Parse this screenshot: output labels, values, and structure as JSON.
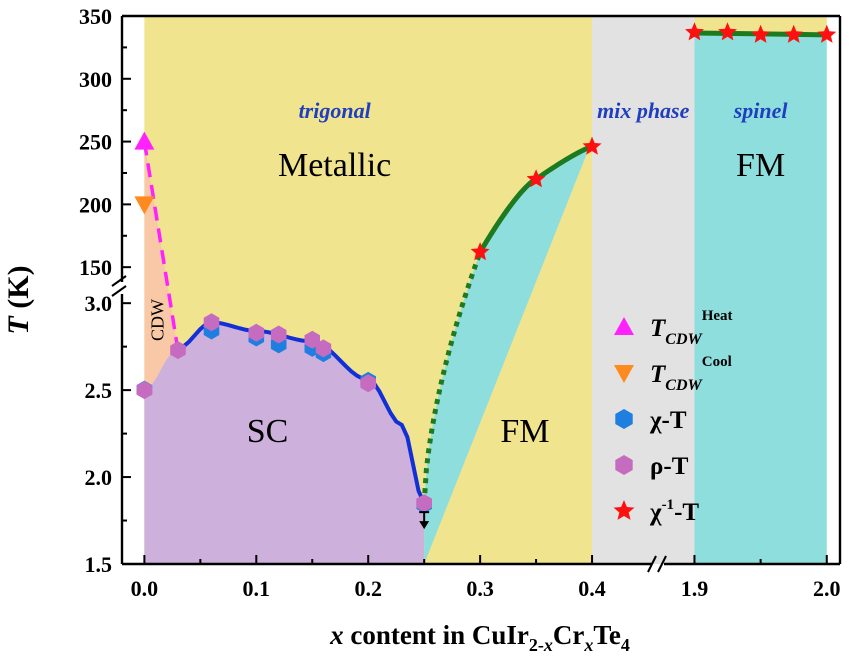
{
  "chart_data": {
    "type": "scatter",
    "title": "",
    "xlabel": {
      "var": "x",
      "text": " content in CuIr",
      "sub1": "2-",
      "sub1_var": "x",
      "mid": "Cr",
      "sub2_var": "x",
      "end": "Te",
      "sub3": "4"
    },
    "ylabel": {
      "var": "T",
      "unit": " (K)"
    },
    "x_ticks_low": [
      "0.0",
      "0.1",
      "0.2",
      "0.3",
      "0.4"
    ],
    "x_ticks_high": [
      "1.9",
      "2.0"
    ],
    "y_ticks_low": [
      "1.5",
      "2.0",
      "2.5",
      "3.0"
    ],
    "y_ticks_high": [
      "150",
      "200",
      "250",
      "300",
      "350"
    ],
    "x_ranges": [
      [
        -0.02,
        0.45
      ],
      [
        1.88,
        2.01
      ]
    ],
    "y_ranges": [
      [
        1.5,
        3.07
      ],
      [
        135,
        350
      ]
    ],
    "regions": [
      {
        "name": "cdw",
        "label": "CDW",
        "color": "#f9c9a7"
      },
      {
        "name": "sc",
        "label": "SC",
        "color": "#cdb0db"
      },
      {
        "name": "metallic",
        "label": "Metallic",
        "color": "#f1e48e"
      },
      {
        "name": "fm-trigonal",
        "label": "FM",
        "color": "#8fdede"
      },
      {
        "name": "mix",
        "label": "",
        "color": "#e2e2e2"
      },
      {
        "name": "fm-spinel",
        "label": "FM",
        "color": "#8fdede"
      }
    ],
    "phase_labels": {
      "trigonal": "trigonal",
      "mix": "mix phase",
      "spinel": "spinel"
    },
    "label_color": "#1f3fbf",
    "series": [
      {
        "name": "T_CDW Heat",
        "marker": "triangle-up",
        "color": "#ff22ff",
        "points": [
          [
            0.0,
            250
          ]
        ]
      },
      {
        "name": "T_CDW Cool",
        "marker": "triangle-down",
        "color": "#ff8a1e",
        "points": [
          [
            0.0,
            200
          ]
        ]
      },
      {
        "name": "χ-T",
        "marker": "hexagon",
        "color": "#1e7fe0",
        "points": [
          [
            0.0,
            2.52
          ],
          [
            0.06,
            2.86
          ],
          [
            0.1,
            2.82
          ],
          [
            0.12,
            2.78
          ],
          [
            0.15,
            2.76
          ],
          [
            0.16,
            2.73
          ],
          [
            0.2,
            2.57
          ],
          [
            0.25,
            1.86
          ]
        ]
      },
      {
        "name": "ρ-T",
        "marker": "hexagon",
        "color": "#c56cc0",
        "points": [
          [
            0.0,
            2.5
          ],
          [
            0.03,
            2.73
          ],
          [
            0.06,
            2.89
          ],
          [
            0.1,
            2.83
          ],
          [
            0.12,
            2.82
          ],
          [
            0.15,
            2.79
          ],
          [
            0.16,
            2.74
          ],
          [
            0.2,
            2.54
          ],
          [
            0.25,
            1.85
          ]
        ]
      },
      {
        "name": "χ⁻¹-T",
        "marker": "star",
        "color": "#ff1010",
        "points": [
          [
            0.3,
            162
          ],
          [
            0.35,
            220
          ],
          [
            0.4,
            246
          ],
          [
            1.9,
            337
          ],
          [
            1.925,
            337
          ],
          [
            1.95,
            335
          ],
          [
            1.975,
            335
          ],
          [
            2.0,
            335
          ]
        ]
      }
    ],
    "legend": {
      "placement": "right",
      "entries": [
        {
          "symbol": "triangle-up",
          "color": "#ff22ff",
          "main": "T",
          "sub": "CDW",
          "sup": "Heat"
        },
        {
          "symbol": "triangle-down",
          "color": "#ff8a1e",
          "main": "T",
          "sub": "CDW",
          "sup": "Cool"
        },
        {
          "symbol": "hexagon",
          "color": "#1e7fe0",
          "text": "χ-T"
        },
        {
          "symbol": "hexagon",
          "color": "#c56cc0",
          "text": "ρ-T"
        },
        {
          "symbol": "star",
          "color": "#ff1010",
          "text": "χ",
          "sup": "-1",
          "tail": "-T"
        }
      ]
    }
  }
}
